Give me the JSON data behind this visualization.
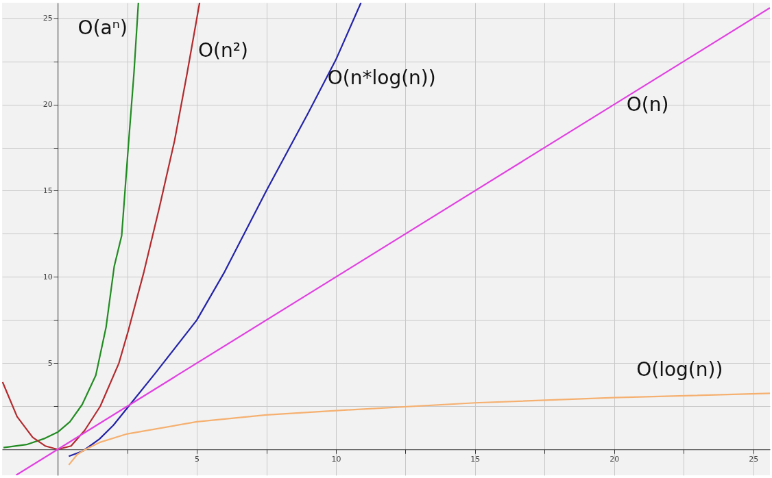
{
  "chart_data": {
    "type": "line",
    "xlim": [
      -2,
      25.6
    ],
    "ylim": [
      -1.5,
      25.9
    ],
    "xticks": [
      {
        "value": 2.5,
        "label": null
      },
      5,
      {
        "value": 7.5,
        "label": null
      },
      10,
      {
        "value": 12.5,
        "label": null
      },
      15,
      {
        "value": 17.5,
        "label": null
      },
      20,
      {
        "value": 22.5,
        "label": null
      },
      25
    ],
    "yticks": [
      {
        "value": 2.5,
        "label": null
      },
      5,
      {
        "value": 7.5,
        "label": null
      },
      10,
      {
        "value": 12.5,
        "label": null
      },
      15,
      {
        "value": 17.5,
        "label": null
      },
      20,
      {
        "value": 22.5,
        "label": null
      },
      25
    ],
    "grid": true,
    "series": [
      {
        "color": "#228b22",
        "x": [
          -1.95,
          -1.12,
          -0.46,
          0,
          0.44,
          0.88,
          1.37,
          1.74,
          2.03,
          2.3,
          2.53,
          2.74,
          2.9
        ],
        "values": [
          0.1,
          0.28,
          0.64,
          1.0,
          1.6,
          2.6,
          4.3,
          7.1,
          10.6,
          12.4,
          17.4,
          21.8,
          25.9
        ]
      },
      {
        "color": "#b22a2e",
        "x": [
          -1.98,
          -1.46,
          -0.9,
          -0.45,
          0,
          0.48,
          0.97,
          1.53,
          2.2,
          2.54,
          3.1,
          3.65,
          4.2,
          4.65,
          5.1
        ],
        "values": [
          3.9,
          1.9,
          0.7,
          0.2,
          0,
          0.2,
          1.1,
          2.5,
          5.0,
          6.9,
          10.3,
          14.0,
          17.9,
          21.8,
          25.9
        ]
      },
      {
        "color": "#2323a8",
        "x": [
          0.4,
          0.9,
          1.5,
          2,
          2.6,
          3.5,
          5,
          6,
          7.5,
          9,
          10,
          10.9
        ],
        "values": [
          -0.4,
          -0.1,
          0.6,
          1.4,
          2.6,
          4.4,
          7.5,
          10.3,
          15,
          19.5,
          22.6,
          25.9
        ]
      },
      {
        "color": "#e040e0",
        "x": [
          -1.5,
          25.6
        ],
        "values": [
          -1.5,
          25.6
        ]
      },
      {
        "color": "#f5b070",
        "x": [
          0.4,
          0.7,
          1,
          1.5,
          2.5,
          5,
          7.5,
          10,
          15,
          20,
          25.6
        ],
        "values": [
          -0.9,
          -0.3,
          0,
          0.4,
          0.9,
          1.6,
          2.0,
          2.25,
          2.7,
          3.0,
          3.25
        ]
      }
    ],
    "annotations": [
      {
        "text": "O(aⁿ)",
        "x": 2.85,
        "y": 24.4
      },
      {
        "text": "O(n²)",
        "x": 4.8,
        "y": 23.1
      },
      {
        "text": "O(n*log(n))",
        "x": 9.7,
        "y": 21.5
      },
      {
        "text": "O(n)",
        "x": 19.95,
        "y": 19.95
      },
      {
        "text": "O(log(n))",
        "x": 20.8,
        "y": 3.05
      }
    ]
  }
}
